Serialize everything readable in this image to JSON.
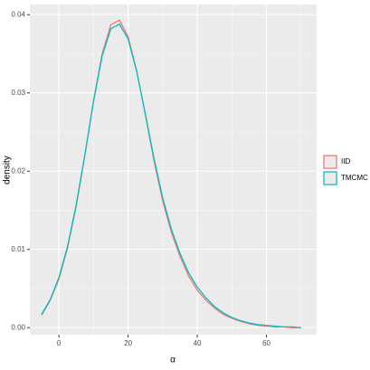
{
  "chart_data": {
    "type": "line",
    "x_label": "α",
    "y_label": "density",
    "x": [
      -5,
      -2.5,
      0,
      2.5,
      5,
      7.5,
      10,
      12.5,
      15,
      17.5,
      20,
      22.5,
      25,
      27.5,
      30,
      32.5,
      35,
      37.5,
      40,
      42.5,
      45,
      47.5,
      50,
      52.5,
      55,
      57.5,
      60,
      62.5,
      65,
      67.5,
      70
    ],
    "series": [
      {
        "name": "IID",
        "color": "#F8766D",
        "values": [
          0.0016,
          0.0035,
          0.0062,
          0.0102,
          0.0155,
          0.022,
          0.029,
          0.035,
          0.0387,
          0.0393,
          0.0372,
          0.0328,
          0.0272,
          0.0213,
          0.0162,
          0.0122,
          0.0091,
          0.0066,
          0.0048,
          0.0035,
          0.0025,
          0.0017,
          0.0012,
          0.0008,
          0.0005,
          0.0003,
          0.0002,
          0.0001,
          0.0001,
          0.0,
          0.0
        ]
      },
      {
        "name": "TMCMC",
        "color": "#00BFC4",
        "values": [
          0.0017,
          0.0036,
          0.0064,
          0.0104,
          0.0157,
          0.0221,
          0.0289,
          0.0347,
          0.0382,
          0.0388,
          0.0369,
          0.0327,
          0.0273,
          0.0216,
          0.0166,
          0.0126,
          0.0095,
          0.007,
          0.0052,
          0.0038,
          0.0027,
          0.0019,
          0.0013,
          0.0009,
          0.0006,
          0.0004,
          0.0003,
          0.0002,
          0.0001,
          0.0001,
          0.0
        ]
      }
    ],
    "xlim": [
      -8.4,
      74.5
    ],
    "xticks": [
      0,
      20,
      40,
      60
    ],
    "ylim": [
      -0.0009,
      0.0413
    ],
    "yticks": [
      {
        "value": 0,
        "label": "0.00"
      },
      {
        "value": 0.01,
        "label": "0.01"
      },
      {
        "value": 0.02,
        "label": "0.02"
      },
      {
        "value": 0.03,
        "label": "0.03"
      },
      {
        "value": 0.04,
        "label": "0.04"
      }
    ],
    "grid": true,
    "legend": "right"
  }
}
